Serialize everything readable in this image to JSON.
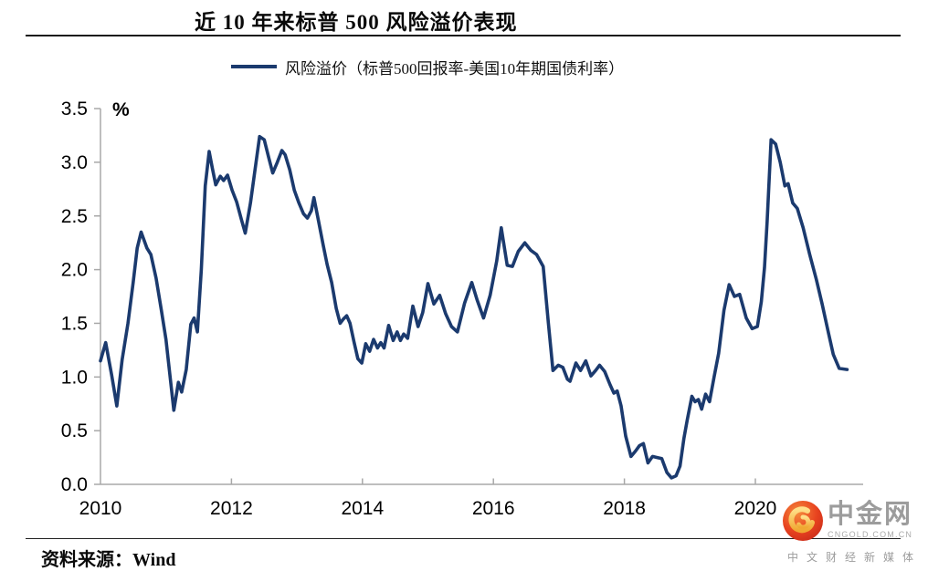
{
  "header": {
    "title": "近 10 年来标普 500 风险溢价表现"
  },
  "legend": {
    "label": "风险溢价（标普500回报率-美国10年期国债利率）"
  },
  "footer": {
    "source_label": "资料来源：Wind"
  },
  "logo": {
    "name": "中金网",
    "domain": "CNGOLD.COM.CN",
    "tagline": "中 文 财 经 新 媒 体",
    "icon": "gold-swirl-in-red-circle",
    "accent_red": "#e0391f",
    "accent_gold": "#ffd24a",
    "text_gray": "#9c9c9c"
  },
  "chart_data": {
    "type": "line",
    "title": "近 10 年来标普 500 风险溢价表现",
    "ylabel": "%",
    "xlabel": "",
    "ylim": [
      0,
      3.5
    ],
    "xlim": [
      2010,
      2021.65
    ],
    "grid": false,
    "legend_position": "top",
    "yticks": [
      0.0,
      0.5,
      1.0,
      1.5,
      2.0,
      2.5,
      3.0,
      3.5
    ],
    "ytick_labels": [
      "0.0",
      "0.5",
      "1.0",
      "1.5",
      "2.0",
      "2.5",
      "3.0",
      "3.5"
    ],
    "xticks": [
      2010,
      2012,
      2014,
      2016,
      2018,
      2020
    ],
    "xtick_labels": [
      "2010",
      "2012",
      "2014",
      "2016",
      "2018",
      "2020"
    ],
    "axis_color": "#a8a8a8",
    "series": [
      {
        "name": "风险溢价（标普500回报率-美国10年期国债利率）",
        "color": "#1b3a6e",
        "points": [
          [
            2010.0,
            1.15
          ],
          [
            2010.08,
            1.32
          ],
          [
            2010.17,
            1.02
          ],
          [
            2010.25,
            0.73
          ],
          [
            2010.33,
            1.16
          ],
          [
            2010.42,
            1.5
          ],
          [
            2010.5,
            1.88
          ],
          [
            2010.56,
            2.2
          ],
          [
            2010.62,
            2.35
          ],
          [
            2010.71,
            2.2
          ],
          [
            2010.77,
            2.14
          ],
          [
            2010.85,
            1.92
          ],
          [
            2010.93,
            1.62
          ],
          [
            2011.0,
            1.35
          ],
          [
            2011.06,
            1.02
          ],
          [
            2011.12,
            0.69
          ],
          [
            2011.19,
            0.95
          ],
          [
            2011.24,
            0.86
          ],
          [
            2011.31,
            1.07
          ],
          [
            2011.38,
            1.49
          ],
          [
            2011.43,
            1.55
          ],
          [
            2011.48,
            1.42
          ],
          [
            2011.54,
            2.0
          ],
          [
            2011.6,
            2.78
          ],
          [
            2011.66,
            3.1
          ],
          [
            2011.71,
            2.94
          ],
          [
            2011.76,
            2.79
          ],
          [
            2011.83,
            2.87
          ],
          [
            2011.88,
            2.83
          ],
          [
            2011.94,
            2.88
          ],
          [
            2012.01,
            2.74
          ],
          [
            2012.08,
            2.63
          ],
          [
            2012.15,
            2.47
          ],
          [
            2012.21,
            2.34
          ],
          [
            2012.29,
            2.62
          ],
          [
            2012.36,
            2.93
          ],
          [
            2012.43,
            3.24
          ],
          [
            2012.5,
            3.21
          ],
          [
            2012.57,
            3.04
          ],
          [
            2012.63,
            2.9
          ],
          [
            2012.7,
            3.0
          ],
          [
            2012.77,
            3.11
          ],
          [
            2012.82,
            3.07
          ],
          [
            2012.89,
            2.93
          ],
          [
            2012.96,
            2.74
          ],
          [
            2013.03,
            2.62
          ],
          [
            2013.1,
            2.52
          ],
          [
            2013.16,
            2.48
          ],
          [
            2013.22,
            2.55
          ],
          [
            2013.26,
            2.67
          ],
          [
            2013.33,
            2.45
          ],
          [
            2013.4,
            2.23
          ],
          [
            2013.46,
            2.05
          ],
          [
            2013.53,
            1.88
          ],
          [
            2013.6,
            1.64
          ],
          [
            2013.66,
            1.5
          ],
          [
            2013.71,
            1.54
          ],
          [
            2013.76,
            1.57
          ],
          [
            2013.81,
            1.5
          ],
          [
            2013.87,
            1.33
          ],
          [
            2013.93,
            1.17
          ],
          [
            2013.99,
            1.13
          ],
          [
            2014.05,
            1.31
          ],
          [
            2014.11,
            1.24
          ],
          [
            2014.17,
            1.35
          ],
          [
            2014.23,
            1.27
          ],
          [
            2014.28,
            1.32
          ],
          [
            2014.33,
            1.27
          ],
          [
            2014.4,
            1.48
          ],
          [
            2014.47,
            1.34
          ],
          [
            2014.53,
            1.42
          ],
          [
            2014.58,
            1.34
          ],
          [
            2014.63,
            1.4
          ],
          [
            2014.69,
            1.36
          ],
          [
            2014.77,
            1.66
          ],
          [
            2014.85,
            1.47
          ],
          [
            2014.92,
            1.6
          ],
          [
            2015.0,
            1.87
          ],
          [
            2015.09,
            1.68
          ],
          [
            2015.18,
            1.76
          ],
          [
            2015.27,
            1.59
          ],
          [
            2015.36,
            1.47
          ],
          [
            2015.45,
            1.42
          ],
          [
            2015.56,
            1.69
          ],
          [
            2015.67,
            1.88
          ],
          [
            2015.75,
            1.72
          ],
          [
            2015.85,
            1.55
          ],
          [
            2015.95,
            1.76
          ],
          [
            2016.05,
            2.08
          ],
          [
            2016.12,
            2.39
          ],
          [
            2016.21,
            2.04
          ],
          [
            2016.29,
            2.03
          ],
          [
            2016.38,
            2.17
          ],
          [
            2016.48,
            2.25
          ],
          [
            2016.57,
            2.18
          ],
          [
            2016.66,
            2.14
          ],
          [
            2016.76,
            2.03
          ],
          [
            2016.84,
            1.5
          ],
          [
            2016.91,
            1.06
          ],
          [
            2016.99,
            1.11
          ],
          [
            2017.06,
            1.09
          ],
          [
            2017.13,
            0.98
          ],
          [
            2017.17,
            0.96
          ],
          [
            2017.26,
            1.13
          ],
          [
            2017.33,
            1.06
          ],
          [
            2017.41,
            1.15
          ],
          [
            2017.49,
            1.01
          ],
          [
            2017.56,
            1.06
          ],
          [
            2017.62,
            1.11
          ],
          [
            2017.7,
            1.05
          ],
          [
            2017.78,
            0.93
          ],
          [
            2017.84,
            0.85
          ],
          [
            2017.89,
            0.87
          ],
          [
            2017.95,
            0.73
          ],
          [
            2018.02,
            0.45
          ],
          [
            2018.1,
            0.26
          ],
          [
            2018.17,
            0.31
          ],
          [
            2018.23,
            0.36
          ],
          [
            2018.29,
            0.38
          ],
          [
            2018.36,
            0.2
          ],
          [
            2018.43,
            0.26
          ],
          [
            2018.5,
            0.25
          ],
          [
            2018.57,
            0.24
          ],
          [
            2018.65,
            0.11
          ],
          [
            2018.72,
            0.06
          ],
          [
            2018.79,
            0.08
          ],
          [
            2018.85,
            0.17
          ],
          [
            2018.91,
            0.43
          ],
          [
            2018.96,
            0.6
          ],
          [
            2019.03,
            0.82
          ],
          [
            2019.08,
            0.77
          ],
          [
            2019.13,
            0.79
          ],
          [
            2019.18,
            0.7
          ],
          [
            2019.24,
            0.84
          ],
          [
            2019.3,
            0.77
          ],
          [
            2019.37,
            1.0
          ],
          [
            2019.44,
            1.22
          ],
          [
            2019.52,
            1.62
          ],
          [
            2019.6,
            1.86
          ],
          [
            2019.68,
            1.75
          ],
          [
            2019.76,
            1.77
          ],
          [
            2019.86,
            1.55
          ],
          [
            2019.95,
            1.45
          ],
          [
            2020.03,
            1.47
          ],
          [
            2020.09,
            1.7
          ],
          [
            2020.14,
            2.02
          ],
          [
            2020.18,
            2.45
          ],
          [
            2020.24,
            3.21
          ],
          [
            2020.31,
            3.17
          ],
          [
            2020.38,
            3.0
          ],
          [
            2020.45,
            2.78
          ],
          [
            2020.5,
            2.8
          ],
          [
            2020.57,
            2.62
          ],
          [
            2020.64,
            2.57
          ],
          [
            2020.73,
            2.39
          ],
          [
            2020.83,
            2.14
          ],
          [
            2020.93,
            1.91
          ],
          [
            2021.02,
            1.68
          ],
          [
            2021.12,
            1.4
          ],
          [
            2021.19,
            1.21
          ],
          [
            2021.28,
            1.08
          ],
          [
            2021.4,
            1.07
          ]
        ]
      }
    ]
  }
}
